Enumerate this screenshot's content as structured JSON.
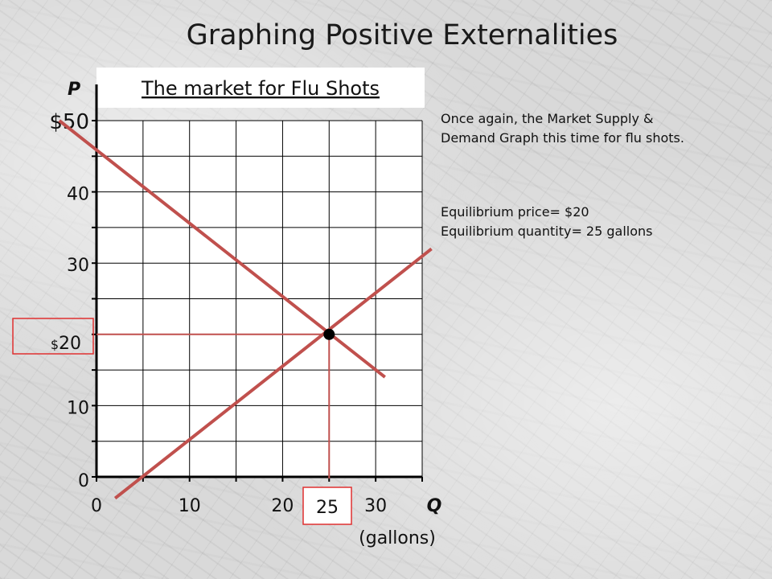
{
  "slide": {
    "title": "Graphing Positive Externalities",
    "note_1": [
      "Once again, the Market Supply &",
      "Demand Graph this time for flu shots."
    ],
    "note_2": [
      "Equilibrium price= $20",
      "Equilibrium quantity= 25 gallons"
    ]
  },
  "chart_data": {
    "type": "line",
    "title": "The market for Flu Shots",
    "xlabel": "Q",
    "xunit": "(gallons)",
    "ylabel": "P",
    "xlim": [
      0,
      35
    ],
    "ylim": [
      0,
      50
    ],
    "x_ticks": [
      0,
      10,
      20,
      30
    ],
    "y_ticks": [
      {
        "value": 0,
        "label": "0"
      },
      {
        "value": 10,
        "label": "10"
      },
      {
        "value": 20,
        "label": "$20"
      },
      {
        "value": 30,
        "label": "30"
      },
      {
        "value": 40,
        "label": "40"
      },
      {
        "value": 50,
        "label": "$50"
      }
    ],
    "grid": true,
    "series": [
      {
        "role": "demand",
        "x": [
          -4,
          31
        ],
        "y": [
          50,
          14
        ]
      },
      {
        "role": "supply",
        "x": [
          2,
          36
        ],
        "y": [
          -3,
          32
        ]
      }
    ],
    "equilibrium": {
      "x": 25,
      "y": 20,
      "x_label": "25",
      "y_label": "$20"
    },
    "colors": {
      "curve": "#c0504d",
      "highlight_box": "#e03030",
      "axis": "#000000"
    }
  }
}
